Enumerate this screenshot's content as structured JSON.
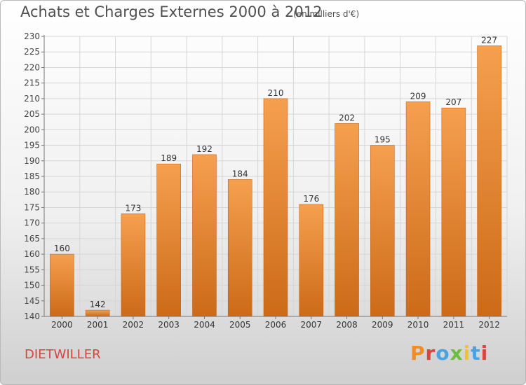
{
  "header": {
    "title": "Achats et Charges Externes 2000 à 2012",
    "unit": "(en milliers d'€)"
  },
  "footer": {
    "location": "DIETWILLER",
    "logo_text": "Proxiti"
  },
  "colors": {
    "bar_light": "#f5a04f",
    "bar_dark": "#cc6a18",
    "grid": "#d6d6d6",
    "location_text": "#d8453e",
    "logo_letters": [
      "#f28c28",
      "#d9453e",
      "#4aa3df",
      "#6cbf3a",
      "#f2c12e",
      "#4aa3df",
      "#d9453e"
    ]
  },
  "chart_data": {
    "type": "bar",
    "title": "Achats et Charges Externes 2000 à 2012",
    "subtitle": "(en milliers d'€)",
    "categories": [
      "2000",
      "2001",
      "2002",
      "2003",
      "2004",
      "2005",
      "2006",
      "2007",
      "2008",
      "2009",
      "2010",
      "2011",
      "2012"
    ],
    "values": [
      160,
      142,
      173,
      189,
      192,
      184,
      210,
      176,
      202,
      195,
      209,
      207,
      227
    ],
    "ylim": [
      140,
      230
    ],
    "yticks": [
      140,
      145,
      150,
      155,
      160,
      165,
      170,
      175,
      180,
      185,
      190,
      195,
      200,
      205,
      210,
      215,
      220,
      225,
      230
    ],
    "grid": true,
    "data_labels": true
  }
}
